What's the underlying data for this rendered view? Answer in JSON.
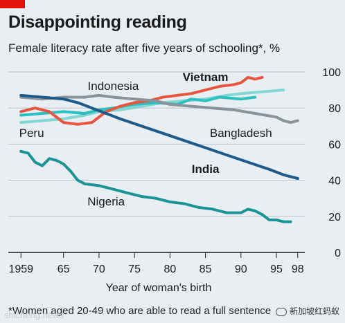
{
  "header": {
    "title": "Disappointing reading",
    "subtitle": "Female literacy rate after five years of schooling*, %"
  },
  "footnote": "*Women aged 20-49 who are able to read a full sentence",
  "watermark": {
    "left": "shicheng.news",
    "right": "新加坡红蚂蚁"
  },
  "chart_data": {
    "type": "line",
    "title": "Disappointing reading",
    "subtitle": "Female literacy rate after five years of schooling*, %",
    "xlabel": "Year of woman's birth",
    "ylabel": "",
    "xlim": [
      1958,
      1999
    ],
    "ylim": [
      0,
      100
    ],
    "x_ticks": [
      1959,
      1965,
      1970,
      1975,
      1980,
      1985,
      1990,
      1995,
      1998
    ],
    "x_tick_labels": [
      "1959",
      "65",
      "70",
      "75",
      "80",
      "85",
      "90",
      "95",
      "98"
    ],
    "y_ticks": [
      0,
      20,
      40,
      60,
      80,
      100
    ],
    "grid": "horizontal",
    "series": [
      {
        "name": "Peru",
        "color": "#7fd6d2",
        "label_weight": "normal",
        "points": [
          [
            1959,
            72
          ],
          [
            1962,
            73
          ],
          [
            1965,
            74
          ],
          [
            1968,
            76
          ],
          [
            1970,
            78
          ],
          [
            1973,
            79
          ],
          [
            1976,
            81
          ],
          [
            1979,
            83
          ],
          [
            1982,
            84
          ],
          [
            1985,
            85
          ],
          [
            1988,
            87
          ],
          [
            1990,
            88
          ],
          [
            1993,
            89
          ],
          [
            1996,
            90
          ]
        ]
      },
      {
        "name": "Indonesia",
        "color": "#2cbfc0",
        "label_weight": "normal",
        "points": [
          [
            1959,
            76
          ],
          [
            1962,
            77
          ],
          [
            1965,
            78
          ],
          [
            1968,
            77
          ],
          [
            1970,
            79
          ],
          [
            1972,
            80
          ],
          [
            1975,
            82
          ],
          [
            1978,
            83
          ],
          [
            1981,
            82
          ],
          [
            1983,
            85
          ],
          [
            1985,
            84
          ],
          [
            1987,
            86
          ],
          [
            1990,
            85
          ],
          [
            1992,
            86
          ]
        ]
      },
      {
        "name": "Vietnam",
        "color": "#e8553e",
        "label_weight": "bold",
        "points": [
          [
            1959,
            78
          ],
          [
            1961,
            80
          ],
          [
            1963,
            78
          ],
          [
            1965,
            72
          ],
          [
            1967,
            71
          ],
          [
            1969,
            72
          ],
          [
            1971,
            78
          ],
          [
            1973,
            81
          ],
          [
            1975,
            83
          ],
          [
            1977,
            84
          ],
          [
            1979,
            86
          ],
          [
            1981,
            87
          ],
          [
            1983,
            88
          ],
          [
            1985,
            90
          ],
          [
            1987,
            92
          ],
          [
            1989,
            93
          ],
          [
            1990,
            94
          ],
          [
            1991,
            97
          ],
          [
            1992,
            96
          ],
          [
            1993,
            97
          ]
        ]
      },
      {
        "name": "Bangladesh",
        "color": "#8a9399",
        "label_weight": "normal",
        "points": [
          [
            1959,
            86
          ],
          [
            1962,
            85
          ],
          [
            1965,
            86
          ],
          [
            1968,
            86
          ],
          [
            1970,
            87
          ],
          [
            1972,
            86
          ],
          [
            1975,
            85
          ],
          [
            1978,
            84
          ],
          [
            1980,
            82
          ],
          [
            1983,
            81
          ],
          [
            1986,
            80
          ],
          [
            1989,
            79
          ],
          [
            1992,
            77
          ],
          [
            1995,
            75
          ],
          [
            1996,
            73
          ],
          [
            1997,
            72
          ],
          [
            1998,
            73
          ]
        ]
      },
      {
        "name": "India",
        "color": "#1d5b8c",
        "label_weight": "bold",
        "points": [
          [
            1959,
            87
          ],
          [
            1962,
            86
          ],
          [
            1965,
            85
          ],
          [
            1967,
            83
          ],
          [
            1969,
            80
          ],
          [
            1971,
            77
          ],
          [
            1973,
            74
          ],
          [
            1976,
            70
          ],
          [
            1979,
            66
          ],
          [
            1982,
            62
          ],
          [
            1985,
            58
          ],
          [
            1988,
            54
          ],
          [
            1991,
            50
          ],
          [
            1994,
            46
          ],
          [
            1996,
            43
          ],
          [
            1998,
            41
          ]
        ]
      },
      {
        "name": "Nigeria",
        "color": "#1b9496",
        "label_weight": "normal",
        "points": [
          [
            1959,
            56
          ],
          [
            1960,
            55
          ],
          [
            1961,
            50
          ],
          [
            1962,
            48
          ],
          [
            1963,
            52
          ],
          [
            1964,
            51
          ],
          [
            1965,
            49
          ],
          [
            1966,
            45
          ],
          [
            1967,
            40
          ],
          [
            1968,
            38
          ],
          [
            1970,
            37
          ],
          [
            1972,
            35
          ],
          [
            1974,
            33
          ],
          [
            1976,
            31
          ],
          [
            1978,
            30
          ],
          [
            1980,
            28
          ],
          [
            1982,
            27
          ],
          [
            1984,
            25
          ],
          [
            1986,
            24
          ],
          [
            1988,
            22
          ],
          [
            1990,
            22
          ],
          [
            1991,
            24
          ],
          [
            1992,
            23
          ],
          [
            1993,
            21
          ],
          [
            1994,
            18
          ],
          [
            1995,
            18
          ],
          [
            1996,
            17
          ],
          [
            1997,
            17
          ]
        ]
      }
    ],
    "labels": [
      {
        "text": "Indonesia",
        "series": "Indonesia",
        "x": 1972,
        "y": 90,
        "weight": "normal",
        "anchor": "middle"
      },
      {
        "text": "Vietnam",
        "series": "Vietnam",
        "x": 1985,
        "y": 95,
        "weight": "bold",
        "anchor": "middle"
      },
      {
        "text": "Peru",
        "series": "Peru",
        "x": 1960.5,
        "y": 64,
        "weight": "normal",
        "anchor": "middle"
      },
      {
        "text": "Bangladesh",
        "series": "Bangladesh",
        "x": 1990,
        "y": 64,
        "weight": "normal",
        "anchor": "middle"
      },
      {
        "text": "India",
        "series": "India",
        "x": 1985,
        "y": 44,
        "weight": "bold",
        "anchor": "middle"
      },
      {
        "text": "Nigeria",
        "series": "Nigeria",
        "x": 1971,
        "y": 26,
        "weight": "normal",
        "anchor": "middle"
      }
    ]
  }
}
